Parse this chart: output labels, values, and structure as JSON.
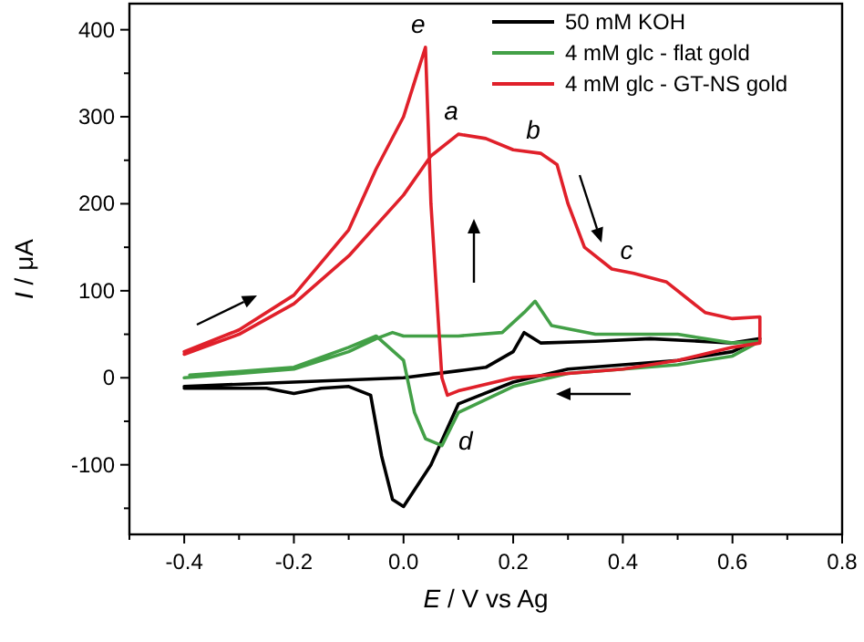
{
  "chart_data": {
    "type": "line",
    "xlabel": "E / V vs Ag",
    "ylabel": "I / μA",
    "xlim": [
      -0.5,
      0.8
    ],
    "ylim": [
      -180,
      430
    ],
    "xticks": [
      {
        "value": -0.5,
        "label": null
      },
      -0.4,
      {
        "value": -0.3,
        "label": null
      },
      -0.2,
      {
        "value": -0.1,
        "label": null
      },
      {
        "value": 0,
        "label": "0.0"
      },
      {
        "value": 0.1,
        "label": null
      },
      0.2,
      {
        "value": 0.3,
        "label": null
      },
      0.4,
      {
        "value": 0.5,
        "label": null
      },
      0.6,
      {
        "value": 0.7,
        "label": null
      },
      0.8
    ],
    "yticks": [
      {
        "value": -150,
        "label": null
      },
      -100,
      {
        "value": -50,
        "label": null
      },
      0,
      {
        "value": 50,
        "label": null
      },
      100,
      {
        "value": 150,
        "label": null
      },
      200,
      {
        "value": 250,
        "label": null
      },
      300,
      {
        "value": 350,
        "label": null
      },
      400
    ],
    "grid": false,
    "legend": "top right",
    "marker": "none",
    "line_style": "solid",
    "series": [
      {
        "name": "50 mM KOH",
        "color": "#000000",
        "x": [
          -0.4,
          -0.2,
          0,
          0.1,
          0.15,
          0.2,
          0.22,
          0.25,
          0.35,
          0.45,
          0.6,
          0.65,
          0.6,
          0.5,
          0.3,
          0.2,
          0.1,
          0.05,
          0,
          -0.02,
          -0.04,
          -0.06,
          -0.1,
          -0.15,
          -0.2,
          -0.25,
          -0.4
        ],
        "values": [
          -10,
          -5,
          0,
          8,
          12,
          30,
          52,
          40,
          42,
          45,
          40,
          45,
          30,
          20,
          10,
          -5,
          -30,
          -100,
          -148,
          -140,
          -90,
          -20,
          -10,
          -12,
          -18,
          -12,
          -12
        ]
      },
      {
        "name": "4 mM glc - flat gold",
        "color": "#43a047",
        "x": [
          -0.4,
          -0.2,
          -0.1,
          -0.05,
          -0.02,
          0,
          0.1,
          0.18,
          0.22,
          0.24,
          0.27,
          0.35,
          0.5,
          0.6,
          0.65,
          0.6,
          0.5,
          0.3,
          0.2,
          0.1,
          0.07,
          0.04,
          0.02,
          0,
          -0.05,
          -0.1,
          -0.2,
          -0.39
        ],
        "values": [
          0,
          10,
          30,
          45,
          52,
          48,
          48,
          52,
          75,
          88,
          60,
          50,
          50,
          40,
          42,
          25,
          15,
          5,
          -10,
          -40,
          -78,
          -70,
          -40,
          20,
          48,
          35,
          12,
          3
        ]
      },
      {
        "name": "4 mM glc - GT-NS gold",
        "color": "#e0202a",
        "x": [
          -0.4,
          -0.3,
          -0.2,
          -0.1,
          0,
          0.05,
          0.1,
          0.15,
          0.2,
          0.25,
          0.28,
          0.3,
          0.33,
          0.38,
          0.42,
          0.48,
          0.55,
          0.6,
          0.65,
          0.65,
          0.6,
          0.5,
          0.4,
          0.3,
          0.2,
          0.1,
          0.08,
          0.07,
          0.05,
          0.04,
          0.02,
          0,
          -0.05,
          -0.1,
          -0.2,
          -0.3,
          -0.4
        ],
        "values": [
          27,
          50,
          85,
          140,
          210,
          255,
          280,
          275,
          262,
          258,
          245,
          200,
          150,
          125,
          120,
          110,
          75,
          68,
          70,
          40,
          35,
          20,
          10,
          5,
          0,
          -15,
          -20,
          0,
          200,
          380,
          340,
          300,
          240,
          170,
          95,
          55,
          30
        ]
      }
    ],
    "annotations": [
      {
        "text": "e",
        "x": 0.04,
        "y": 380
      },
      {
        "text": "a",
        "x": 0.1,
        "y": 280
      },
      {
        "text": "b",
        "x": 0.25,
        "y": 258
      },
      {
        "text": "c",
        "x": 0.42,
        "y": 120
      },
      {
        "text": "d",
        "x": 0.08,
        "y": -20
      }
    ]
  }
}
